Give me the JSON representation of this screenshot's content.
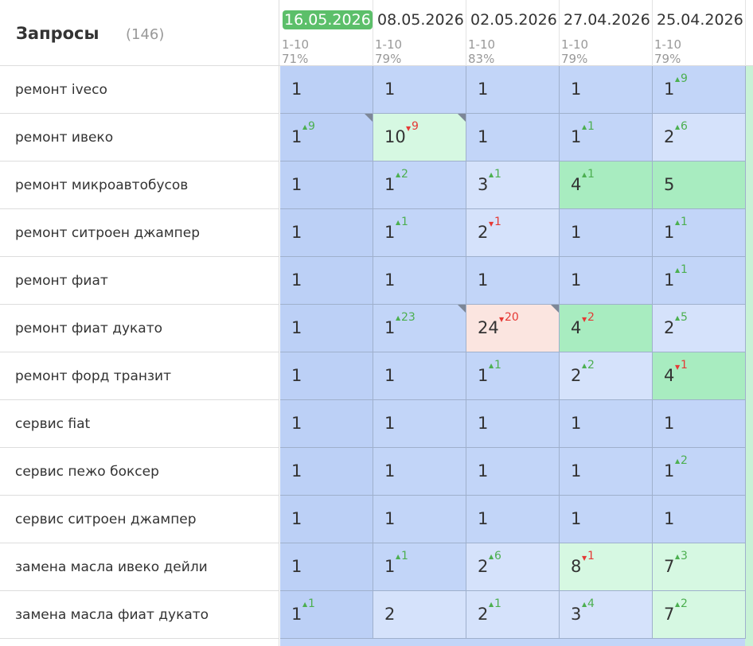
{
  "header": {
    "title": "Запросы",
    "count": "(146)"
  },
  "columns": [
    {
      "date": "16.05.2026",
      "range": "1-10",
      "share": "71%",
      "current": true
    },
    {
      "date": "08.05.2026",
      "range": "1-10",
      "share": "79%"
    },
    {
      "date": "02.05.2026",
      "range": "1-10",
      "share": "83%"
    },
    {
      "date": "27.04.2026",
      "range": "1-10",
      "share": "79%"
    },
    {
      "date": "25.04.2026",
      "range": "1-10",
      "share": "79%"
    }
  ],
  "rows": [
    {
      "query": "ремонт iveco",
      "cells": [
        {
          "v": 1,
          "color": "#bcd0f6"
        },
        {
          "v": 1,
          "color": "#c2d5f8"
        },
        {
          "v": 1,
          "color": "#c2d5f8"
        },
        {
          "v": 1,
          "color": "#c2d5f8"
        },
        {
          "v": 1,
          "d": 9,
          "dir": "up",
          "color": "#c2d5f8"
        }
      ]
    },
    {
      "query": "ремонт ивеко",
      "cells": [
        {
          "v": 1,
          "d": 9,
          "dir": "up",
          "flag": true,
          "color": "#bcd0f6"
        },
        {
          "v": 10,
          "d": 9,
          "dir": "down",
          "flag": true,
          "color": "#d6f8e2"
        },
        {
          "v": 1,
          "color": "#c2d5f8"
        },
        {
          "v": 1,
          "d": 1,
          "dir": "up",
          "color": "#c2d5f8"
        },
        {
          "v": 2,
          "d": 6,
          "dir": "up",
          "color": "#d5e2fb"
        }
      ]
    },
    {
      "query": "ремонт микроавтобусов",
      "cells": [
        {
          "v": 1,
          "color": "#bcd0f6"
        },
        {
          "v": 1,
          "d": 2,
          "dir": "up",
          "color": "#c2d5f8"
        },
        {
          "v": 3,
          "d": 1,
          "dir": "up",
          "color": "#d5e2fb"
        },
        {
          "v": 4,
          "d": 1,
          "dir": "up",
          "color": "#a8ecc0"
        },
        {
          "v": 5,
          "color": "#a8ecc0"
        }
      ]
    },
    {
      "query": "ремонт ситроен джампер",
      "cells": [
        {
          "v": 1,
          "color": "#bcd0f6"
        },
        {
          "v": 1,
          "d": 1,
          "dir": "up",
          "color": "#c2d5f8"
        },
        {
          "v": 2,
          "d": 1,
          "dir": "down",
          "color": "#d5e2fb"
        },
        {
          "v": 1,
          "color": "#c2d5f8"
        },
        {
          "v": 1,
          "d": 1,
          "dir": "up",
          "color": "#c2d5f8"
        }
      ]
    },
    {
      "query": "ремонт фиат",
      "cells": [
        {
          "v": 1,
          "color": "#bcd0f6"
        },
        {
          "v": 1,
          "color": "#c2d5f8"
        },
        {
          "v": 1,
          "color": "#c2d5f8"
        },
        {
          "v": 1,
          "color": "#c2d5f8"
        },
        {
          "v": 1,
          "d": 1,
          "dir": "up",
          "color": "#c2d5f8"
        }
      ]
    },
    {
      "query": "ремонт фиат дукато",
      "cells": [
        {
          "v": 1,
          "color": "#bcd0f6"
        },
        {
          "v": 1,
          "d": 23,
          "dir": "up",
          "flag": true,
          "color": "#c2d5f8"
        },
        {
          "v": 24,
          "d": 20,
          "dir": "down",
          "flag": true,
          "color": "#fbe5e0"
        },
        {
          "v": 4,
          "d": 2,
          "dir": "down",
          "color": "#a8ecc0"
        },
        {
          "v": 2,
          "d": 5,
          "dir": "up",
          "color": "#d5e2fb"
        }
      ]
    },
    {
      "query": "ремонт форд транзит",
      "cells": [
        {
          "v": 1,
          "color": "#bcd0f6"
        },
        {
          "v": 1,
          "color": "#c2d5f8"
        },
        {
          "v": 1,
          "d": 1,
          "dir": "up",
          "color": "#c2d5f8"
        },
        {
          "v": 2,
          "d": 2,
          "dir": "up",
          "color": "#d5e2fb"
        },
        {
          "v": 4,
          "d": 1,
          "dir": "down",
          "color": "#a8ecc0"
        }
      ]
    },
    {
      "query": "сервис fiat",
      "cells": [
        {
          "v": 1,
          "color": "#bcd0f6"
        },
        {
          "v": 1,
          "color": "#c2d5f8"
        },
        {
          "v": 1,
          "color": "#c2d5f8"
        },
        {
          "v": 1,
          "color": "#c2d5f8"
        },
        {
          "v": 1,
          "color": "#c2d5f8"
        }
      ]
    },
    {
      "query": "сервис пежо боксер",
      "cells": [
        {
          "v": 1,
          "color": "#bcd0f6"
        },
        {
          "v": 1,
          "color": "#c2d5f8"
        },
        {
          "v": 1,
          "color": "#c2d5f8"
        },
        {
          "v": 1,
          "color": "#c2d5f8"
        },
        {
          "v": 1,
          "d": 2,
          "dir": "up",
          "color": "#c2d5f8"
        }
      ]
    },
    {
      "query": "сервис ситроен джампер",
      "cells": [
        {
          "v": 1,
          "color": "#bcd0f6"
        },
        {
          "v": 1,
          "color": "#c2d5f8"
        },
        {
          "v": 1,
          "color": "#c2d5f8"
        },
        {
          "v": 1,
          "color": "#c2d5f8"
        },
        {
          "v": 1,
          "color": "#c2d5f8"
        }
      ]
    },
    {
      "query": "замена масла ивеко дейли",
      "cells": [
        {
          "v": 1,
          "color": "#bcd0f6"
        },
        {
          "v": 1,
          "d": 1,
          "dir": "up",
          "color": "#c2d5f8"
        },
        {
          "v": 2,
          "d": 6,
          "dir": "up",
          "color": "#d5e2fb"
        },
        {
          "v": 8,
          "d": 1,
          "dir": "down",
          "color": "#d6f8e2"
        },
        {
          "v": 7,
          "d": 3,
          "dir": "up",
          "color": "#d6f8e2"
        }
      ]
    },
    {
      "query": "замена масла фиат дукато",
      "cells": [
        {
          "v": 1,
          "d": 1,
          "dir": "up",
          "color": "#bcd0f6"
        },
        {
          "v": 2,
          "color": "#d5e2fb"
        },
        {
          "v": 2,
          "d": 1,
          "dir": "up",
          "color": "#d5e2fb"
        },
        {
          "v": 3,
          "d": 4,
          "dir": "up",
          "color": "#d5e2fb"
        },
        {
          "v": 7,
          "d": 2,
          "dir": "up",
          "color": "#d6f8e2"
        }
      ]
    }
  ]
}
